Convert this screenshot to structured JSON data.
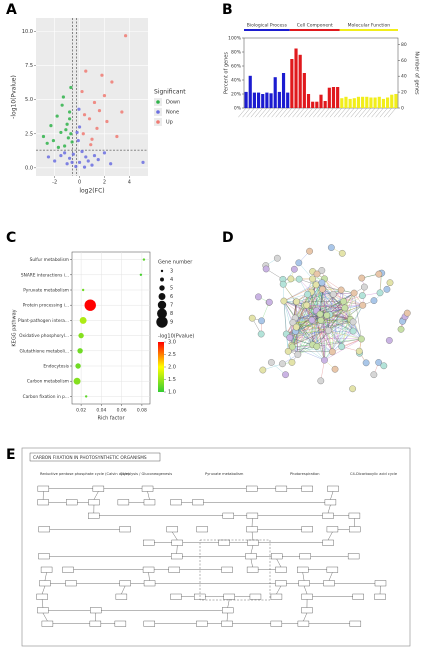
{
  "chart_data": [
    {
      "panel": "A",
      "type": "scatter",
      "xlabel": "log2(FC)",
      "ylabel": "-log10(Pvalue)",
      "xlim": [
        -3.5,
        5.5
      ],
      "xticks": [
        -2,
        0,
        2,
        4
      ],
      "ylim": [
        -0.6,
        11
      ],
      "yticks": [
        {
          "value": 0,
          "label": "0.0"
        },
        {
          "value": 2.5,
          "label": "2.5"
        },
        {
          "value": 5,
          "label": "5.0"
        },
        {
          "value": 7.5,
          "label": "7.5"
        },
        {
          "value": 10,
          "label": "10.0"
        }
      ],
      "grid": true,
      "legend": "right",
      "legend_title": "Significant",
      "reference_lines": {
        "x": [
          -0.58,
          -0.26
        ],
        "y": [
          1.3
        ]
      },
      "series": [
        {
          "name": "Down",
          "color": "#2fb34a",
          "x": [
            -2.1,
            -1.5,
            -1.0,
            -0.8,
            -2.6,
            -1.8,
            -1.2,
            -0.9,
            -0.7,
            -1.4,
            -2.3,
            -0.6,
            -1.1,
            -1.7,
            -0.8,
            -2.9,
            -1.3,
            -0.7
          ],
          "y": [
            2.0,
            2.6,
            3.2,
            4.1,
            1.8,
            3.8,
            1.6,
            2.2,
            5.9,
            4.6,
            3.1,
            1.9,
            2.8,
            1.5,
            3.6,
            2.3,
            5.2,
            2.5
          ]
        },
        {
          "name": "None",
          "color": "#6b6fe0",
          "x": [
            -2,
            -1.5,
            -1,
            -0.5,
            0,
            0.5,
            1,
            1.5,
            2,
            -0.3,
            0.2,
            -0.8,
            0.7,
            -1.2,
            1.2,
            -0.1,
            0,
            -0.2,
            -0.05,
            5.1,
            2.5,
            -2.5,
            0.4,
            -0.6
          ],
          "y": [
            0.5,
            0.9,
            0.3,
            1.0,
            0.4,
            0.8,
            0.2,
            0.6,
            1.1,
            0.1,
            1.2,
            0.7,
            0.5,
            1.1,
            0.9,
            2.0,
            3.0,
            2.6,
            4.3,
            0.4,
            0.3,
            0.8,
            0.05,
            0.4
          ]
        },
        {
          "name": "Up",
          "color": "#f07a72",
          "x": [
            0.3,
            0.8,
            1.2,
            1.6,
            2.0,
            0.5,
            1.0,
            2.6,
            3.4,
            3.7,
            0.4,
            1.4,
            2.2,
            0.2,
            0.9,
            1.8,
            3.0
          ],
          "y": [
            2.5,
            3.6,
            4.8,
            4.2,
            5.3,
            7.1,
            2.1,
            6.3,
            4.1,
            9.7,
            3.9,
            2.9,
            3.4,
            5.6,
            1.7,
            6.8,
            2.3
          ]
        }
      ]
    },
    {
      "panel": "B",
      "type": "bar",
      "ylabel": "Percent of genes",
      "y2label": "Number of genes",
      "ylim": [
        0,
        100
      ],
      "yticks": [
        {
          "value": 0,
          "label": "0%"
        },
        {
          "value": 20,
          "label": "20%"
        },
        {
          "value": 40,
          "label": "40%"
        },
        {
          "value": 60,
          "label": "60%"
        },
        {
          "value": 80,
          "label": "80%"
        },
        {
          "value": 100,
          "label": "100%"
        }
      ],
      "y2lim": [
        0,
        88
      ],
      "y2ticks": [
        0,
        20,
        40,
        60,
        80
      ],
      "categories": [
        null,
        null,
        null,
        null,
        null,
        null,
        null,
        null,
        null,
        null,
        null,
        null,
        null,
        null,
        null,
        null,
        null,
        null,
        null,
        null,
        null,
        null,
        null,
        null,
        null,
        null,
        null,
        null,
        null,
        null,
        null,
        null,
        null,
        null,
        null,
        null,
        null
      ],
      "series": [
        {
          "name": "Biological Process",
          "color": "#1c1cd0",
          "values": [
            23,
            46,
            22,
            22,
            20,
            22,
            21,
            44,
            23,
            50,
            22,
            null,
            null,
            null,
            null,
            null,
            null,
            null,
            null,
            null,
            null,
            null,
            null,
            null,
            null,
            null,
            null,
            null,
            null,
            null,
            null,
            null,
            null,
            null,
            null,
            null,
            null
          ]
        },
        {
          "name": "Cell Component",
          "color": "#e0191d",
          "values": [
            null,
            null,
            null,
            null,
            null,
            null,
            null,
            null,
            null,
            null,
            null,
            70,
            85,
            76,
            50,
            20,
            9,
            9,
            19,
            10,
            29,
            30,
            30,
            null,
            null,
            null,
            null,
            null,
            null,
            null,
            null,
            null,
            null,
            null,
            null,
            null,
            null
          ]
        },
        {
          "name": "Molecular Function",
          "color": "#f2ee1a",
          "values": [
            null,
            null,
            null,
            null,
            null,
            null,
            null,
            null,
            null,
            null,
            null,
            null,
            null,
            null,
            null,
            null,
            null,
            null,
            null,
            null,
            null,
            null,
            null,
            14,
            16,
            13,
            14,
            16,
            16,
            16,
            15,
            15,
            16,
            13,
            15,
            19,
            20
          ]
        }
      ]
    },
    {
      "panel": "C",
      "type": "bubble",
      "xlabel": "Rich factor",
      "ylabel": "KEGG pathway",
      "categories": [
        "Sulfur metabolism",
        "SNARE interactions i...",
        "Pyruvate metabolism",
        "Protein processing i...",
        "Plant-pathogen intera...",
        "Oxidative phosphoryl...",
        "Glutathione metaboli...",
        "Endocytosis",
        "Carbon metabolism",
        "Carbon fixation in p..."
      ],
      "x": [
        0.082,
        0.079,
        0.022,
        0.029,
        0.022,
        0.02,
        0.019,
        0.017,
        0.016,
        0.025
      ],
      "size": [
        3,
        3,
        3,
        9,
        6,
        5,
        5,
        5,
        6,
        3
      ],
      "color_values": [
        1.2,
        1.1,
        1.3,
        3.0,
        1.6,
        1.4,
        1.3,
        1.3,
        1.4,
        1.2
      ],
      "xlim": [
        0.011,
        0.088
      ],
      "xticks": [
        0.02,
        0.04,
        0.06,
        0.08
      ],
      "grid": true,
      "size_legend_title": "Gene number",
      "size_ticks": [
        3,
        4,
        5,
        6,
        7,
        8,
        9
      ],
      "color_legend_title": "-log10(Pvalue)",
      "clim": [
        1,
        3
      ],
      "cticks": [
        {
          "value": 3,
          "label": "3.0"
        },
        {
          "value": 2.5,
          "label": "2.5"
        },
        {
          "value": 2,
          "label": "2.0"
        },
        {
          "value": 1.5,
          "label": "1.5"
        },
        {
          "value": 1,
          "label": "1.0"
        }
      ],
      "colormap": [
        "#33cc33",
        "#ffff00",
        "#ff0000"
      ]
    }
  ],
  "diagrams": [
    {
      "panel": "D"
    },
    {
      "panel": "E",
      "title": "CARBON FIXATION IN PHOTOSYNTHETIC ORGANISMS",
      "labels": [
        "Reductive pentose phosphate cycle (Calvin cycle)",
        "Glycolysis / Gluconeogenesis",
        "Pyruvate metabolism",
        "Photorespiration",
        "C4-Dicarboxylic acid cycle"
      ]
    }
  ]
}
